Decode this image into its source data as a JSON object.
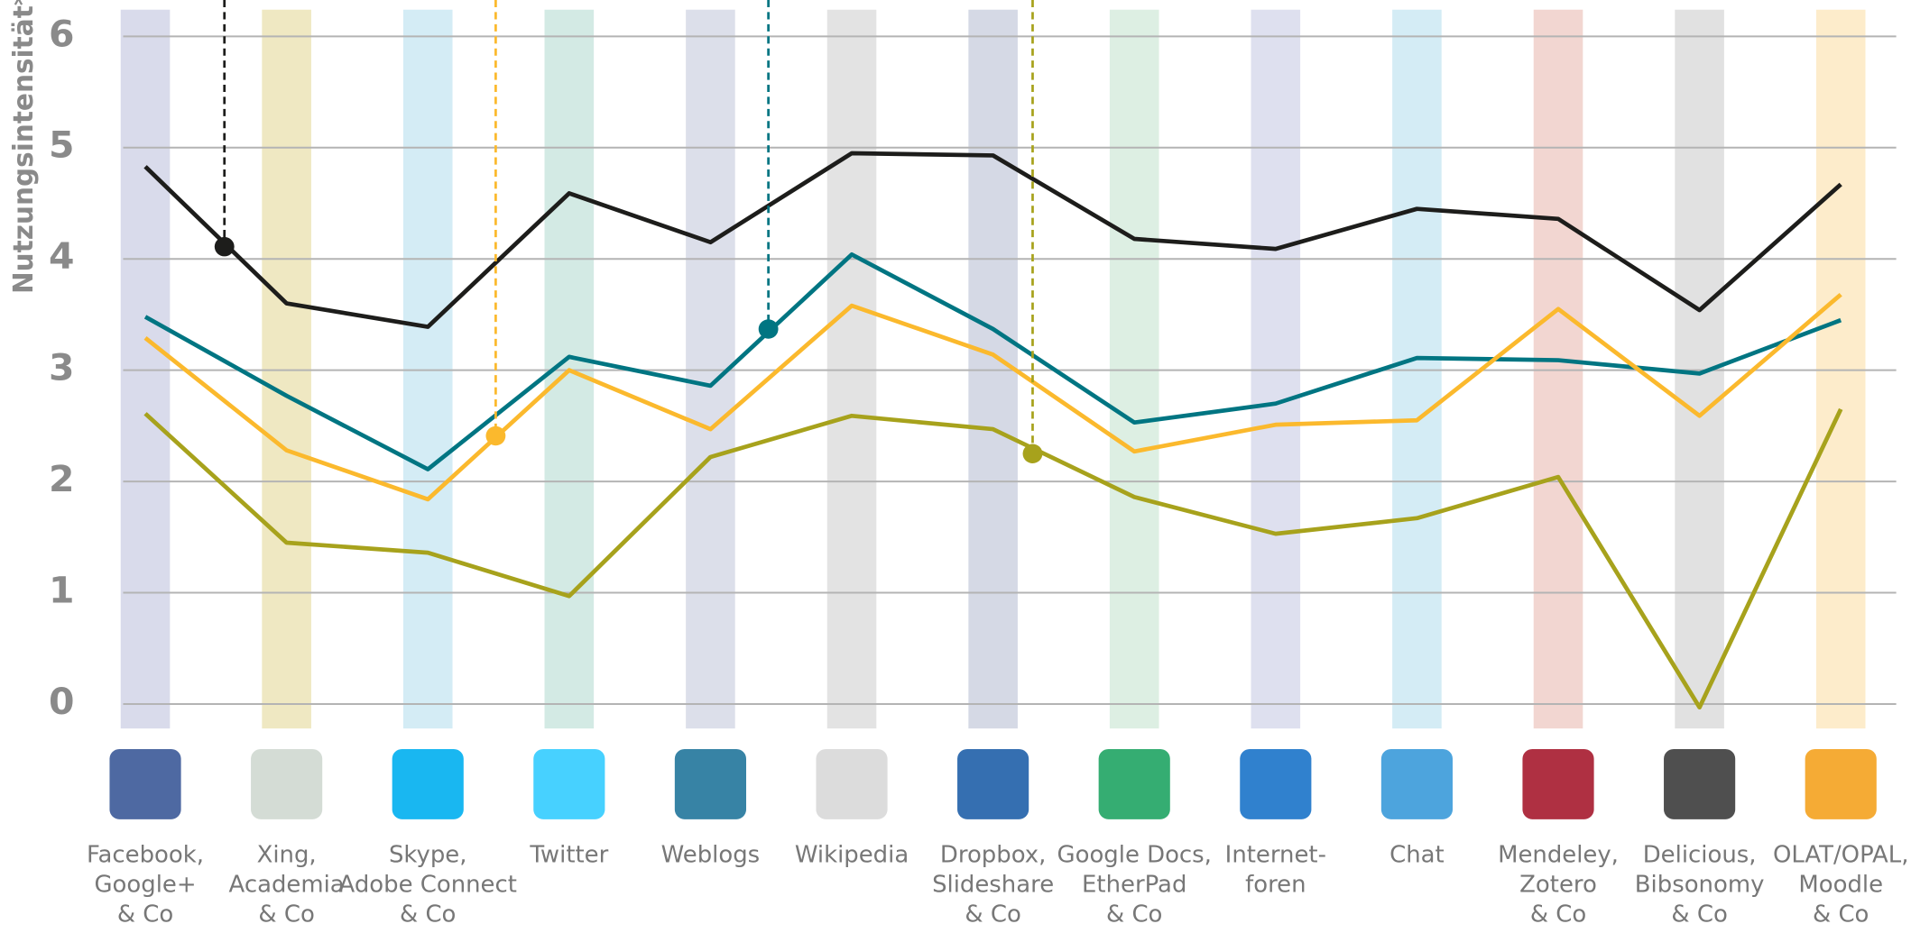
{
  "chart_data": {
    "type": "line",
    "y_label": "Nutzungsintensität*",
    "categories": [
      [
        "Facebook,",
        "Google+",
        "& Co"
      ],
      [
        "Xing,",
        "Academia",
        "& Co"
      ],
      [
        "Skype,",
        "Adobe Connect",
        "& Co"
      ],
      [
        "Twitter"
      ],
      [
        "Weblogs"
      ],
      [
        "Wikipedia"
      ],
      [
        "Dropbox,",
        "Slideshare",
        "& Co"
      ],
      [
        "Google Docs,",
        "EtherPad",
        "& Co"
      ],
      [
        "Internet-",
        "foren"
      ],
      [
        "Chat"
      ],
      [
        "Mendeley,",
        "Zotero",
        "& Co"
      ],
      [
        "Delicious,",
        "Bibsonomy",
        "& Co"
      ],
      [
        "OLAT/OPAL,",
        "Moodle",
        "& Co"
      ]
    ],
    "band_colors": [
      "#d9dbeb",
      "#efe8c2",
      "#d4ecf5",
      "#d3eae4",
      "#dcdfea",
      "#e3e3e3",
      "#d5d9e5",
      "#ddefe3",
      "#dee0ef",
      "#d4ecf5",
      "#f2d6d1",
      "#e1e1e1",
      "#fdeccb"
    ],
    "series": [
      {
        "color": "#1d1d1b",
        "values": [
          4.83,
          3.6,
          3.39,
          4.59,
          4.15,
          4.95,
          4.93,
          4.18,
          4.09,
          4.45,
          4.36,
          3.54,
          4.67
        ]
      },
      {
        "color": "#007582",
        "values": [
          3.48,
          2.77,
          2.11,
          3.12,
          2.86,
          4.04,
          3.37,
          2.53,
          2.7,
          3.11,
          3.09,
          2.97,
          3.45
        ]
      },
      {
        "color": "#fbb92d",
        "values": [
          3.29,
          2.28,
          1.84,
          3.0,
          2.47,
          3.58,
          3.14,
          2.27,
          2.51,
          2.55,
          3.55,
          2.59,
          3.68
        ]
      },
      {
        "color": "#a7a21c",
        "values": [
          2.61,
          1.45,
          1.36,
          0.97,
          2.22,
          2.59,
          2.47,
          1.86,
          1.53,
          1.67,
          2.04,
          -0.03,
          2.65
        ]
      }
    ],
    "markers": [
      {
        "color": "#1d1d1b",
        "x": 0.56,
        "y": 4.11
      },
      {
        "color": "#fbb92d",
        "x": 2.48,
        "y": 2.41
      },
      {
        "color": "#007582",
        "x": 4.41,
        "y": 3.37
      },
      {
        "color": "#a7a21c",
        "x": 6.28,
        "y": 2.25
      }
    ],
    "ylim": [
      -0.22,
      6.24
    ],
    "yticks": [
      0,
      1,
      2,
      3,
      4,
      5,
      6
    ],
    "grid": true
  }
}
